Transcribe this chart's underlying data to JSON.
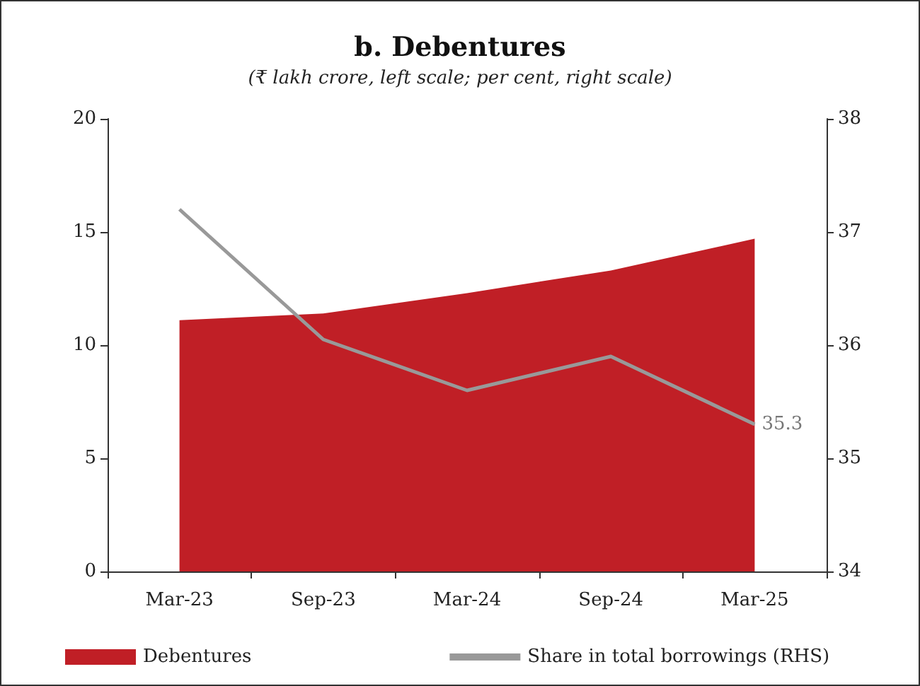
{
  "chart_data": {
    "type": "area",
    "title": "b. Debentures",
    "subtitle": "(₹ lakh crore, left scale; per cent, right scale)",
    "categories": [
      "Mar-23",
      "Sep-23",
      "Mar-24",
      "Sep-24",
      "Mar-25"
    ],
    "series": [
      {
        "name": "Debentures",
        "color": "#c01f26",
        "values": [
          11.1,
          11.4,
          12.3,
          13.3,
          14.7
        ]
      },
      {
        "name": "Share in total borrowings (RHS)",
        "type": "line",
        "axis": "y2",
        "color": "#999999",
        "values": [
          37.2,
          36.05,
          35.6,
          35.9,
          35.3
        ],
        "value_labels": [
          null,
          null,
          null,
          null,
          "35.3"
        ]
      }
    ],
    "ylim": [
      0,
      20
    ],
    "yticks": [
      0,
      5,
      10,
      15,
      20
    ],
    "y2lim": [
      34,
      38
    ],
    "y2ticks": [
      34,
      35,
      36,
      37,
      38
    ],
    "grid": false,
    "legend": "bottom",
    "marker": "none",
    "line_style": "solid"
  }
}
